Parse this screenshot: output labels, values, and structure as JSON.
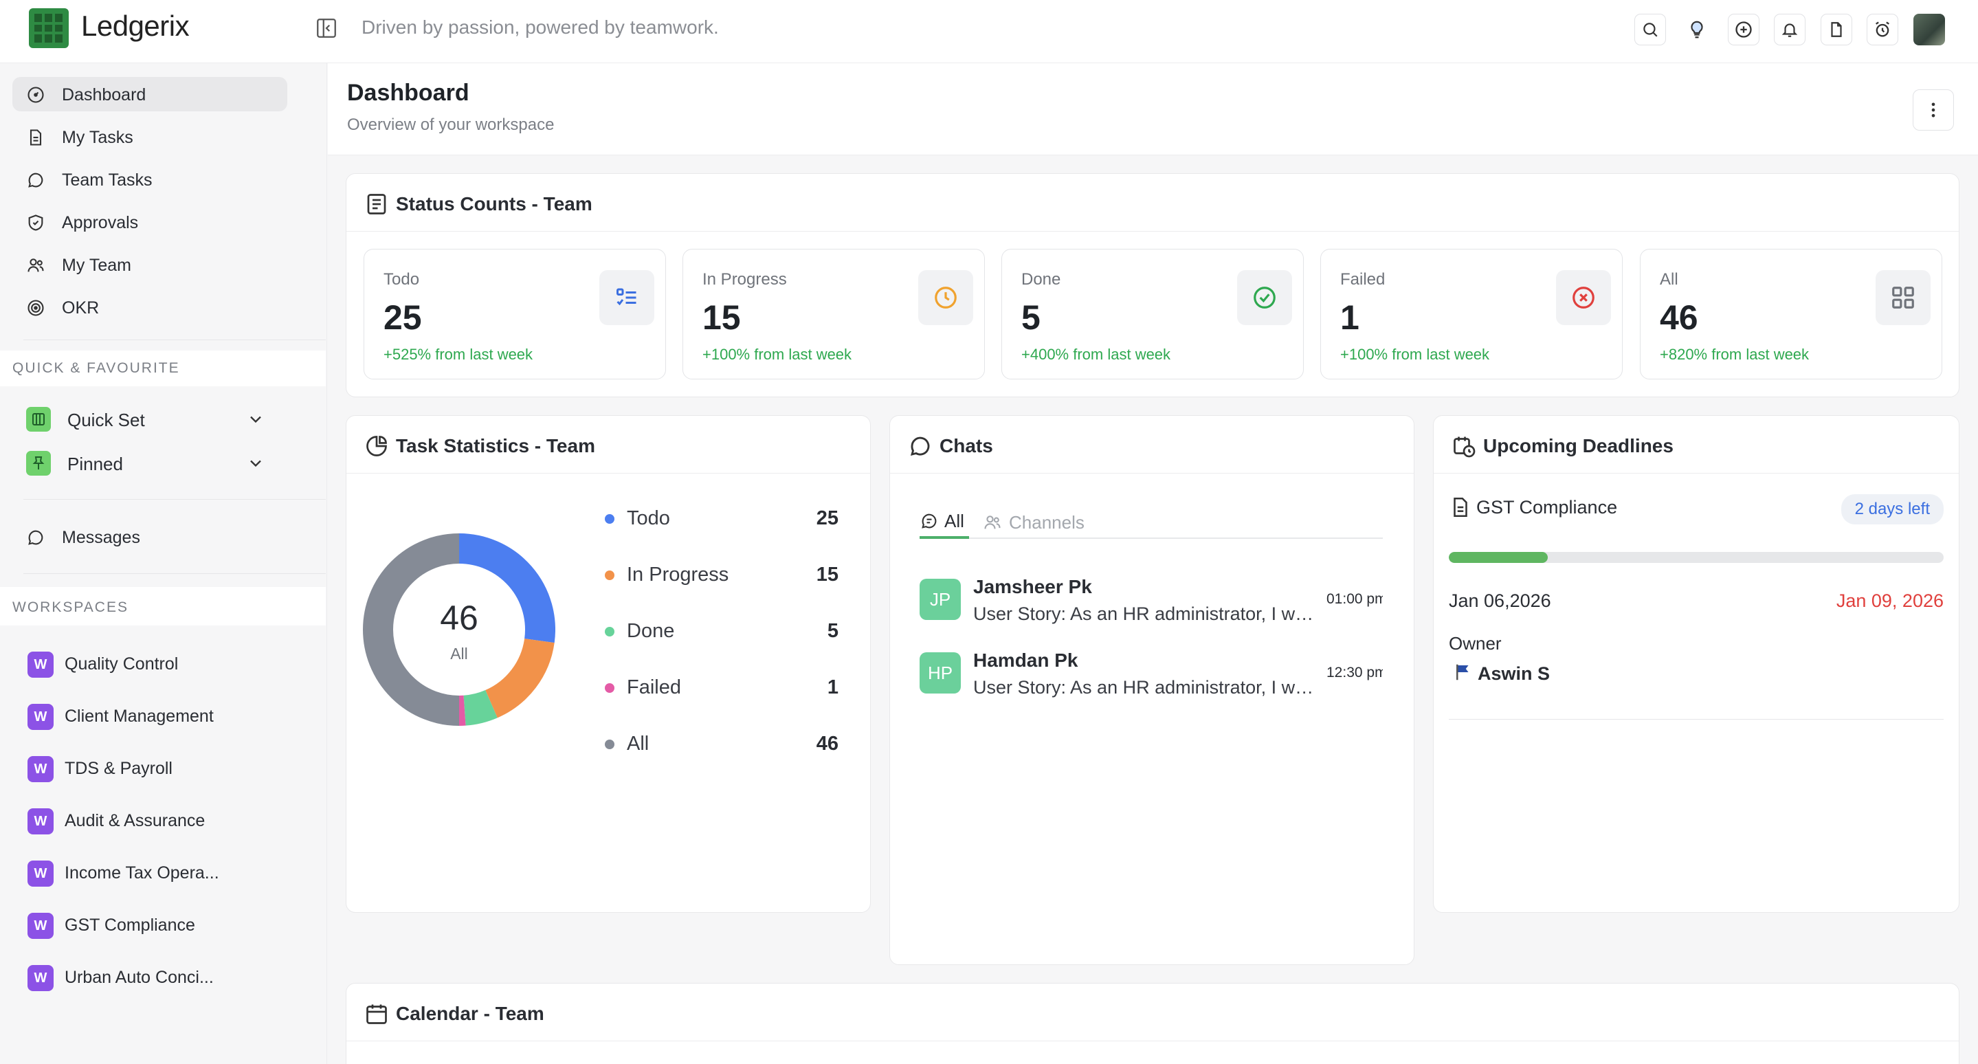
{
  "app": {
    "name": "Ledgerix",
    "tagline": "Driven by passion, powered by teamwork."
  },
  "topbar": {
    "icons": [
      "search-icon",
      "lightbulb-icon",
      "plus-circle-icon",
      "bell-icon",
      "file-icon",
      "alarm-icon"
    ]
  },
  "sidebar": {
    "nav": [
      {
        "label": "Dashboard",
        "icon": "dashboard-icon",
        "active": true
      },
      {
        "label": "My Tasks",
        "icon": "file-icon"
      },
      {
        "label": "Team Tasks",
        "icon": "chat-bubble-icon"
      },
      {
        "label": "Approvals",
        "icon": "shield-icon"
      },
      {
        "label": "My Team",
        "icon": "users-icon"
      },
      {
        "label": "OKR",
        "icon": "target-icon"
      }
    ],
    "quick_heading": "QUICK & FAVOURITE",
    "quick": [
      {
        "label": "Quick Set"
      },
      {
        "label": "Pinned"
      }
    ],
    "messages_label": "Messages",
    "workspaces_heading": "WORKSPACES",
    "workspace_badge": "W",
    "workspaces": [
      "Quality Control",
      "Client Management",
      "TDS & Payroll",
      "Audit & Assurance",
      "Income Tax Opera...",
      "GST Compliance",
      "Urban Auto Conci..."
    ]
  },
  "header": {
    "title": "Dashboard",
    "subtitle": "Overview of your workspace"
  },
  "status": {
    "title": "Status Counts - Team",
    "cards": [
      {
        "label": "Todo",
        "value": "25",
        "change": "+525% from last week",
        "icon": "list-check-icon",
        "color": "#3b6fe0"
      },
      {
        "label": "In Progress",
        "value": "15",
        "change": "+100% from last week",
        "icon": "clock-icon",
        "color": "#f0a22e"
      },
      {
        "label": "Done",
        "value": "5",
        "change": "+400% from last week",
        "icon": "check-circle-icon",
        "color": "#2ea84f"
      },
      {
        "label": "Failed",
        "value": "1",
        "change": "+100% from last week",
        "icon": "x-circle-icon",
        "color": "#e0403d"
      },
      {
        "label": "All",
        "value": "46",
        "change": "+820% from last week",
        "icon": "grid-icon",
        "color": "#6f737a"
      }
    ]
  },
  "task_stats": {
    "title": "Task Statistics - Team",
    "center_value": "46",
    "center_label": "All",
    "legend": [
      {
        "name": "Todo",
        "value": "25",
        "color": "#4c7ef0"
      },
      {
        "name": "In Progress",
        "value": "15",
        "color": "#f2924a"
      },
      {
        "name": "Done",
        "value": "5",
        "color": "#67d39a"
      },
      {
        "name": "Failed",
        "value": "1",
        "color": "#e45ba6"
      },
      {
        "name": "All",
        "value": "46",
        "color": "#858b96"
      }
    ]
  },
  "chart_data": {
    "type": "pie",
    "categories": [
      "Todo",
      "In Progress",
      "Done",
      "Failed",
      "All"
    ],
    "values": [
      25,
      15,
      5,
      1,
      46
    ],
    "colors": [
      "#4c7ef0",
      "#f2924a",
      "#67d39a",
      "#e45ba6",
      "#858b96"
    ],
    "donut": true,
    "center_value": "46",
    "center_label": "All"
  },
  "chats": {
    "title": "Chats",
    "tabs": [
      {
        "label": "All",
        "active": true
      },
      {
        "label": "Channels"
      }
    ],
    "items": [
      {
        "initials": "JP",
        "name": "Jamsheer Pk",
        "message": "User Story: As an HR administrator, I want to manage employee records",
        "time": "01:00 pm"
      },
      {
        "initials": "HP",
        "name": "Hamdan Pk",
        "message": "User Story: As an HR administrator, I want to manage employee records",
        "time": "12:30 pm"
      }
    ]
  },
  "deadlines": {
    "title": "Upcoming Deadlines",
    "items": [
      {
        "name": "GST Compliance",
        "badge": "2 days left",
        "progress": 0.2,
        "start": "Jan 06,2026",
        "due": "Jan 09, 2026",
        "owner_label": "Owner",
        "owner": "Aswin S"
      }
    ]
  },
  "calendar": {
    "title": "Calendar - Team"
  }
}
